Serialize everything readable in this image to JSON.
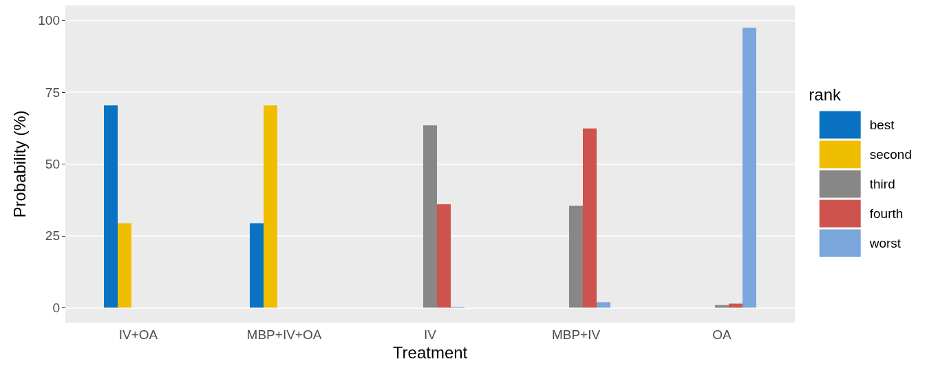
{
  "chart_data": {
    "type": "bar",
    "xlabel": "Treatment",
    "ylabel": "Probability (%)",
    "legend_title": "rank",
    "categories": [
      "IV+OA",
      "MBP+IV+OA",
      "IV",
      "MBP+IV",
      "OA"
    ],
    "series": [
      {
        "name": "best",
        "color": "#0a72c3",
        "values": [
          70.4,
          29.4,
          0,
          0,
          0
        ]
      },
      {
        "name": "second",
        "color": "#f0be00",
        "values": [
          29.4,
          70.4,
          0,
          0,
          0
        ]
      },
      {
        "name": "third",
        "color": "#878787",
        "values": [
          0,
          0,
          63.5,
          35.5,
          0.9
        ]
      },
      {
        "name": "fourth",
        "color": "#cd534c",
        "values": [
          0,
          0,
          36.0,
          62.4,
          1.4
        ]
      },
      {
        "name": "worst",
        "color": "#7aa6dc",
        "values": [
          0,
          0,
          0.3,
          1.9,
          97.4
        ]
      }
    ],
    "ylim": [
      -5.2,
      105.2
    ],
    "yticks": [
      0,
      25,
      50,
      75,
      100
    ],
    "grid": "y",
    "legend": "right"
  }
}
